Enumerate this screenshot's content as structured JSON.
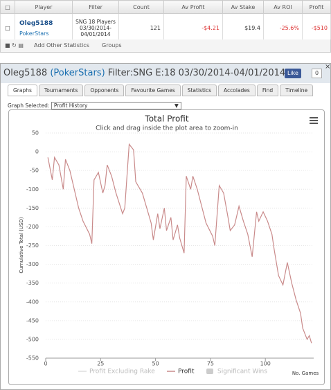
{
  "table": {
    "headers": [
      "Player",
      "Filter",
      "Count",
      "Av Profit",
      "Av Stake",
      "Av ROI",
      "Profit"
    ],
    "row": {
      "player": "Oleg5188",
      "site": "PokerStars",
      "filter": "SNG 18 Players 03/30/2014-04/01/2014",
      "count": "121",
      "av_profit": "-$4.21",
      "av_stake": "$19.4",
      "av_roi": "-25.6%",
      "profit": "-$510"
    }
  },
  "toolbar": {
    "add": "Add Other Statistics",
    "groups": "Groups"
  },
  "panel": {
    "player": "Oleg5188",
    "site": "(PokerStars)",
    "filter": "Filter:SNG E:18 03/30/2014-04/01/2014",
    "like": "Like",
    "like_count": "0",
    "tabs": [
      "Graphs",
      "Tournaments",
      "Opponents",
      "Favourite Games",
      "Statistics",
      "Accolades",
      "Find",
      "Timeline"
    ],
    "graph_label": "Graph Selected:",
    "graph_value": "Profit History"
  },
  "chart_data": {
    "type": "line",
    "title": "Total Profit",
    "subtitle": "Click and drag inside the plot area to zoom-in",
    "ylabel": "Cumulative Total (USD)",
    "xlabel": "No. Games",
    "legend": [
      "Profit Excluding Rake",
      "Profit",
      "Significant Wins"
    ],
    "legend_colors": [
      "#dddddd",
      "#c98a8a",
      "#cccccc"
    ],
    "x": [
      1,
      3,
      4,
      6,
      8,
      9,
      11,
      13,
      15,
      17,
      20,
      21,
      22,
      24,
      26,
      27,
      28,
      30,
      32,
      35,
      36,
      38,
      40,
      41,
      44,
      46,
      48,
      49,
      51,
      52,
      54,
      55,
      57,
      58,
      60,
      61,
      63,
      64,
      66,
      67,
      69,
      71,
      73,
      76,
      77,
      79,
      81,
      83,
      84,
      86,
      88,
      90,
      92,
      94,
      96,
      97,
      99,
      101,
      103,
      104,
      106,
      108,
      110,
      112,
      114,
      116,
      117,
      119,
      120,
      121
    ],
    "series": [
      {
        "name": "Profit",
        "color": "#c98a8a",
        "values": [
          -15,
          -75,
          -15,
          -35,
          -100,
          -20,
          -50,
          -100,
          -150,
          -185,
          -220,
          -245,
          -75,
          -55,
          -110,
          -90,
          -35,
          -65,
          -110,
          -165,
          -150,
          20,
          5,
          -80,
          -110,
          -150,
          -190,
          -235,
          -165,
          -205,
          -150,
          -210,
          -175,
          -235,
          -195,
          -230,
          -270,
          -65,
          -100,
          -65,
          -100,
          -145,
          -190,
          -225,
          -250,
          -90,
          -110,
          -175,
          -210,
          -195,
          -145,
          -185,
          -220,
          -280,
          -160,
          -185,
          -160,
          -185,
          -220,
          -260,
          -330,
          -355,
          -295,
          -350,
          -395,
          -430,
          -470,
          -500,
          -490,
          -510
        ]
      }
    ],
    "xlim": [
      0,
      122
    ],
    "ylim": [
      -550,
      50
    ],
    "xticks": [
      0,
      25,
      50,
      75,
      100
    ],
    "yticks": [
      50,
      0,
      -50,
      -100,
      -150,
      -200,
      -250,
      -300,
      -350,
      -400,
      -450,
      -500,
      -550
    ],
    "grid": true
  }
}
